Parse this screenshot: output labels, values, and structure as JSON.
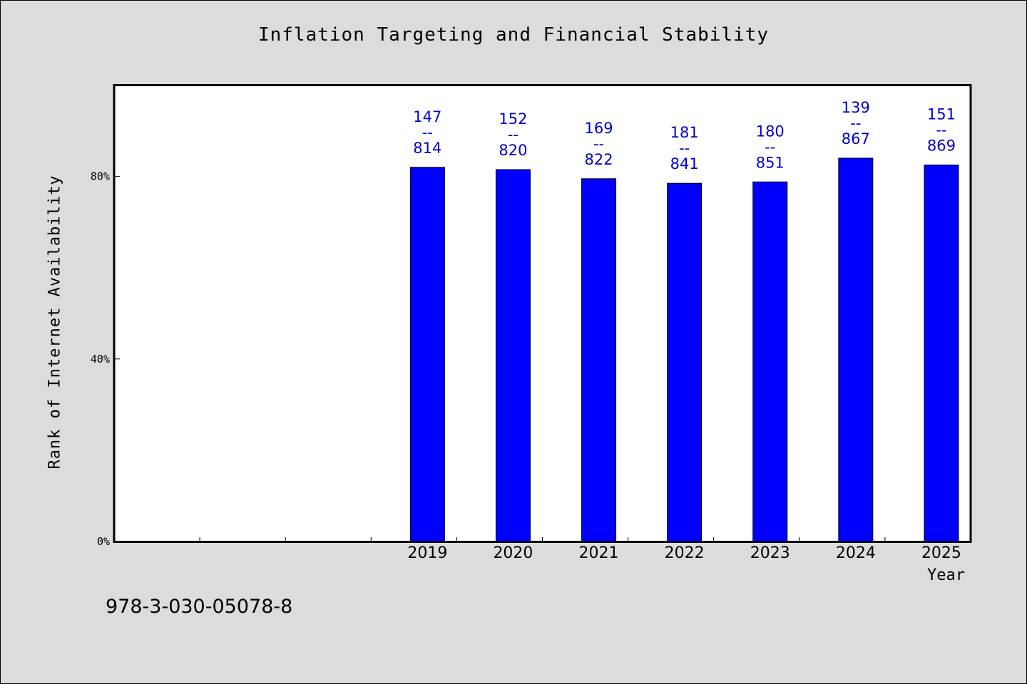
{
  "page": {
    "title": "Inflation Targeting and Financial Stability",
    "footer_code": "978-3-030-05078-8"
  },
  "chart_data": {
    "type": "bar",
    "title": "Inflation Targeting and Financial Stability",
    "xlabel": "Year",
    "ylabel": "Rank of Internet Availability",
    "y_tick_labels": [
      "0%",
      "40%",
      "80%"
    ],
    "y_ticks": [
      0,
      40,
      80
    ],
    "ylim": [
      0,
      100
    ],
    "categories": [
      "",
      "",
      "",
      "2019",
      "2020",
      "2021",
      "2022",
      "2023",
      "2024",
      "2025"
    ],
    "values": [
      null,
      null,
      null,
      82,
      81.5,
      79.5,
      78.5,
      78.8,
      84,
      82.5
    ],
    "labels": [
      null,
      null,
      null,
      [
        "147",
        "--",
        "814"
      ],
      [
        "152",
        "--",
        "820"
      ],
      [
        "169",
        "--",
        "822"
      ],
      [
        "181",
        "--",
        "841"
      ],
      [
        "180",
        "--",
        "851"
      ],
      [
        "139",
        "--",
        "867"
      ],
      [
        "151",
        "--",
        "869"
      ]
    ],
    "bar_color": "#0000ff",
    "label_color": "#0000cc",
    "grid": false,
    "legend": "none"
  }
}
